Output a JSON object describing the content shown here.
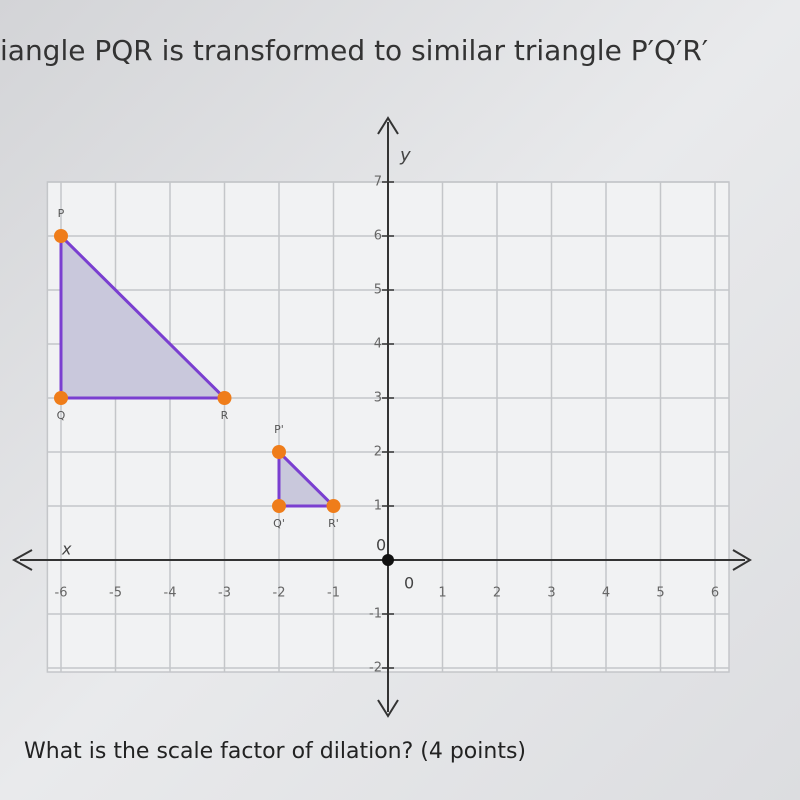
{
  "question": "iangle PQR is transformed to similar triangle P′Q′R′",
  "prompt": "What is the scale factor of dilation? (4 points)",
  "graph": {
    "x_label": "x",
    "y_label": "y",
    "origin_labels": [
      "0",
      "0"
    ],
    "xlim": [
      -6.25,
      6
    ],
    "ylim": [
      -2,
      7
    ],
    "xticks": [
      -6,
      -5,
      -4,
      -3,
      -2,
      -1,
      1,
      2,
      3,
      4,
      5,
      6
    ],
    "yticks": [
      -2,
      -1,
      1,
      2,
      3,
      4,
      5,
      6,
      7
    ],
    "triangles": [
      {
        "fill": "#c9c8dc",
        "stroke": "#7a3fd0",
        "vertices": [
          {
            "label": "P",
            "x": -6,
            "y": 6
          },
          {
            "label": "Q",
            "x": -6,
            "y": 3
          },
          {
            "label": "R",
            "x": -3,
            "y": 3
          }
        ]
      },
      {
        "fill": "#c9c8dc",
        "stroke": "#7a3fd0",
        "vertices": [
          {
            "label": "P'",
            "x": -2,
            "y": 2
          },
          {
            "label": "Q'",
            "x": -2,
            "y": 1
          },
          {
            "label": "R'",
            "x": -1,
            "y": 1
          }
        ]
      }
    ],
    "point_color": "#ef7d1a"
  }
}
